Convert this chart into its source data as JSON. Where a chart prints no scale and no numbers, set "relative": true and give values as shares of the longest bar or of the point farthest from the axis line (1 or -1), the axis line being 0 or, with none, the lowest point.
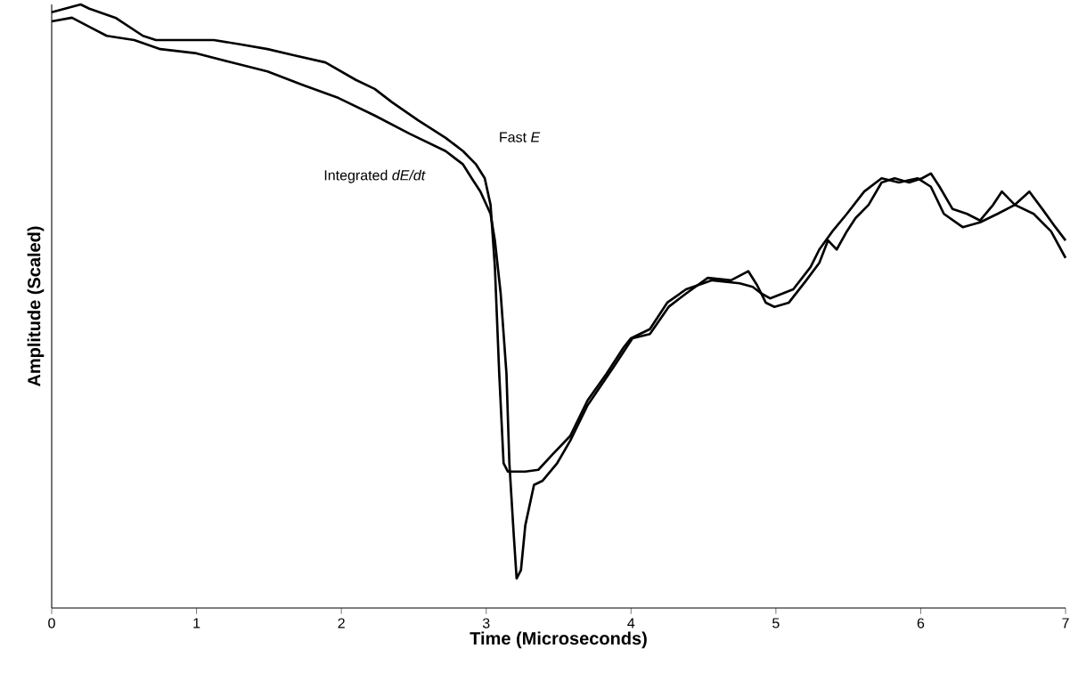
{
  "chart_data": {
    "type": "line",
    "relative": true,
    "xlabel": "Time (Microseconds)",
    "ylabel": "Amplitude (Scaled)",
    "xlim": [
      0,
      7
    ],
    "xticks": [
      0,
      1,
      2,
      3,
      4,
      5,
      6,
      7
    ],
    "grid": false,
    "marker": "none",
    "line_style": "solid",
    "tick_labels": "x",
    "series": [
      {
        "name": "Fast *E*",
        "color": "#000000",
        "x": [
          0,
          0.2,
          0.26,
          0.44,
          0.63,
          0.72,
          1.12,
          1.3,
          1.49,
          1.67,
          1.89,
          2.1,
          2.23,
          2.35,
          2.53,
          2.72,
          2.84,
          2.93,
          2.99,
          3.03,
          3.06,
          3.09,
          3.12,
          3.15,
          3.27,
          3.36,
          3.46,
          3.58,
          3.7,
          3.83,
          3.95,
          4.0,
          4.13,
          4.25,
          4.38,
          4.56,
          4.75,
          4.84,
          4.9,
          4.96,
          5.12,
          5.24,
          5.3,
          5.39,
          5.49,
          5.61,
          5.73,
          5.85,
          5.98,
          6.07,
          6.16,
          6.29,
          6.41,
          6.53,
          6.65,
          6.78,
          6.9,
          7.0
        ],
        "values": [
          0.987,
          1,
          0.993,
          0.978,
          0.948,
          0.941,
          0.941,
          0.934,
          0.926,
          0.916,
          0.904,
          0.875,
          0.86,
          0.838,
          0.808,
          0.779,
          0.757,
          0.735,
          0.712,
          0.668,
          0.565,
          0.388,
          0.24,
          0.226,
          0.226,
          0.229,
          0.255,
          0.285,
          0.344,
          0.388,
          0.432,
          0.447,
          0.462,
          0.506,
          0.528,
          0.543,
          0.538,
          0.532,
          0.521,
          0.513,
          0.528,
          0.565,
          0.594,
          0.624,
          0.653,
          0.69,
          0.712,
          0.705,
          0.712,
          0.698,
          0.653,
          0.631,
          0.639,
          0.653,
          0.668,
          0.653,
          0.624,
          0.58
        ]
      },
      {
        "name": "Integrated *dE/dt*",
        "color": "#000000",
        "x": [
          0,
          0.14,
          0.26,
          0.38,
          0.57,
          0.75,
          1.0,
          1.24,
          1.49,
          1.73,
          1.98,
          2.23,
          2.47,
          2.72,
          2.84,
          2.9,
          2.96,
          3.03,
          3.06,
          3.1,
          3.14,
          3.16,
          3.19,
          3.21,
          3.24,
          3.27,
          3.33,
          3.39,
          3.49,
          3.58,
          3.7,
          3.89,
          4.01,
          4.13,
          4.26,
          4.38,
          4.53,
          4.69,
          4.81,
          4.87,
          4.93,
          4.99,
          5.09,
          5.21,
          5.3,
          5.36,
          5.42,
          5.49,
          5.55,
          5.64,
          5.73,
          5.82,
          5.92,
          6.01,
          6.07,
          6.13,
          6.22,
          6.32,
          6.41,
          6.5,
          6.56,
          6.65,
          6.75,
          6.84,
          6.93,
          7.0
        ],
        "values": [
          0.972,
          0.978,
          0.963,
          0.948,
          0.941,
          0.926,
          0.919,
          0.904,
          0.889,
          0.867,
          0.845,
          0.816,
          0.786,
          0.757,
          0.735,
          0.712,
          0.69,
          0.653,
          0.609,
          0.521,
          0.388,
          0.24,
          0.122,
          0.049,
          0.063,
          0.137,
          0.204,
          0.211,
          0.24,
          0.277,
          0.336,
          0.403,
          0.447,
          0.454,
          0.499,
          0.521,
          0.547,
          0.543,
          0.558,
          0.535,
          0.506,
          0.499,
          0.506,
          0.543,
          0.572,
          0.609,
          0.594,
          0.624,
          0.646,
          0.668,
          0.705,
          0.712,
          0.705,
          0.712,
          0.72,
          0.698,
          0.661,
          0.653,
          0.642,
          0.668,
          0.69,
          0.668,
          0.69,
          0.661,
          0.631,
          0.609
        ]
      }
    ]
  }
}
